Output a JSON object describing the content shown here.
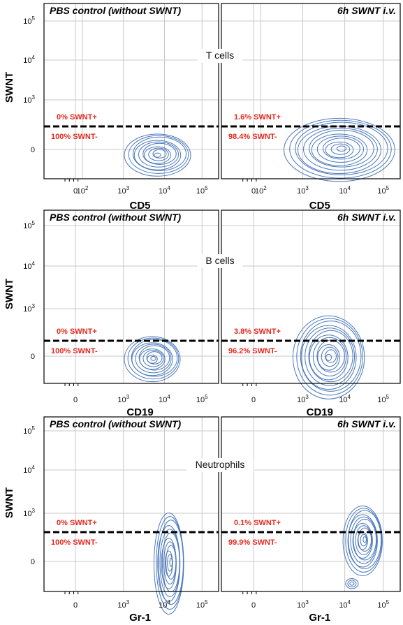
{
  "chart_data": [
    {
      "type": "contour",
      "row_label": "T cells",
      "xlabel": "CD5",
      "ylabel": "SWNT",
      "x_ticks": [
        "0",
        "10^2",
        "10^3",
        "10^4",
        "10^5"
      ],
      "y_ticks": [
        "0",
        "10^3",
        "10^4",
        "10^5"
      ],
      "panels": [
        {
          "title": "PBS control (without SWNT)",
          "positive_label": "0% SWNT+",
          "negative_label": "100% SWNT-",
          "swnt_positive_pct": 0,
          "swnt_negative_pct": 100
        },
        {
          "title": "6h SWNT i.v.",
          "positive_label": "1.6% SWNT+",
          "negative_label": "98.4% SWNT-",
          "swnt_positive_pct": 1.6,
          "swnt_negative_pct": 98.4
        }
      ]
    },
    {
      "type": "contour",
      "row_label": "B cells",
      "xlabel": "CD19",
      "ylabel": "SWNT",
      "x_ticks": [
        "0",
        "10^3",
        "10^4",
        "10^5"
      ],
      "y_ticks": [
        "0",
        "10^3",
        "10^4",
        "10^5"
      ],
      "panels": [
        {
          "title": "PBS control (without SWNT)",
          "positive_label": "0% SWNT+",
          "negative_label": "100% SWNT-",
          "swnt_positive_pct": 0,
          "swnt_negative_pct": 100
        },
        {
          "title": "6h SWNT i.v.",
          "positive_label": "3.8% SWNT+",
          "negative_label": "96.2% SWNT-",
          "swnt_positive_pct": 3.8,
          "swnt_negative_pct": 96.2
        }
      ]
    },
    {
      "type": "contour",
      "row_label": "Neutrophils",
      "xlabel": "Gr-1",
      "ylabel": "SWNT",
      "x_ticks": [
        "0",
        "10^3",
        "10^4",
        "10^5"
      ],
      "y_ticks": [
        "0",
        "10^3",
        "10^4",
        "10^5"
      ],
      "panels": [
        {
          "title": "PBS control (without SWNT)",
          "positive_label": "0% SWNT+",
          "negative_label": "100% SWNT-",
          "swnt_positive_pct": 0,
          "swnt_negative_pct": 100
        },
        {
          "title": "6h SWNT i.v.",
          "positive_label": "0.1% SWNT+",
          "negative_label": "99.9% SWNT-",
          "swnt_positive_pct": 0.1,
          "swnt_negative_pct": 99.9
        }
      ]
    }
  ],
  "colors": {
    "contour": "#4a78bd",
    "gate_text": "#e8281e",
    "gate_line": "#000000",
    "grid": "#c8c8c8",
    "frame": "#000000"
  }
}
